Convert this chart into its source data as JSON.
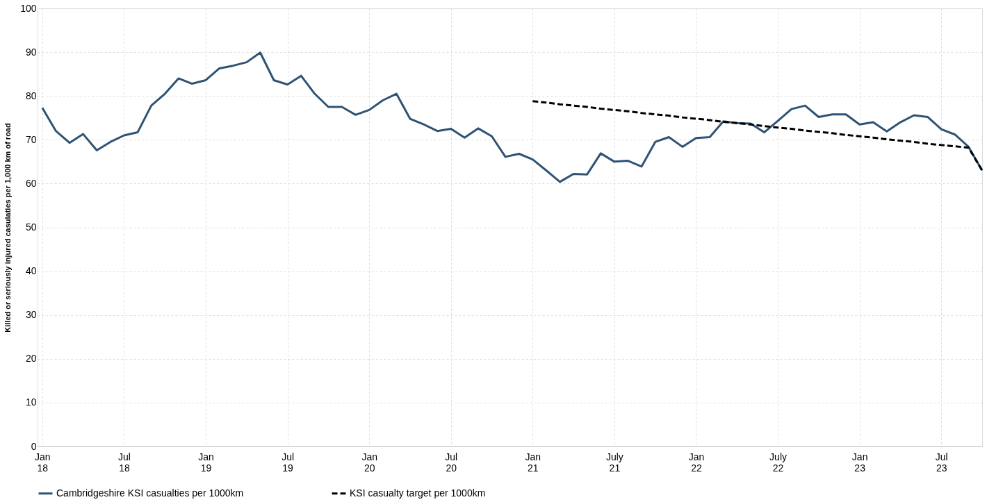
{
  "chart_data": {
    "type": "line",
    "ylabel": "Killed or seriously injured casulaties per 1,000 km of road",
    "categories": [
      "Jan 18",
      null,
      null,
      null,
      null,
      null,
      "Jul 18",
      null,
      null,
      null,
      null,
      null,
      "Jan 19",
      null,
      null,
      null,
      null,
      null,
      "Jul 19",
      null,
      null,
      null,
      null,
      null,
      "Jan 20",
      null,
      null,
      null,
      null,
      null,
      "Jul 20",
      null,
      null,
      null,
      null,
      null,
      "Jan 21",
      null,
      null,
      null,
      null,
      null,
      "July 21",
      null,
      null,
      null,
      null,
      null,
      "Jan 22",
      null,
      null,
      null,
      null,
      null,
      "July 22",
      null,
      null,
      null,
      null,
      null,
      "Jan 23",
      null,
      null,
      null,
      null,
      null,
      "Jul 23",
      null,
      null,
      null
    ],
    "series": [
      {
        "name": "Cambridgeshire KSI casualties per 1000km",
        "color": "#2f5374",
        "line_style": "solid",
        "values": [
          77.3,
          72,
          69.3,
          71.3,
          67.6,
          69.5,
          71,
          71.7,
          77.8,
          80.5,
          84,
          82.8,
          83.6,
          86.3,
          86.9,
          87.7,
          89.9,
          83.6,
          82.6,
          84.6,
          80.5,
          77.5,
          77.5,
          75.7,
          76.8,
          79,
          80.5,
          74.8,
          73.5,
          72,
          72.5,
          70.5,
          72.6,
          70.8,
          66.1,
          66.8,
          65.5,
          63,
          60.4,
          62.2,
          62.1,
          66.9,
          65,
          65.2,
          63.9,
          69.5,
          70.6,
          68.4,
          70.4,
          70.6,
          74.2,
          73.8,
          73.7,
          71.7,
          74.3,
          77,
          77.8,
          75.2,
          75.8,
          75.8,
          73.5,
          74,
          71.9,
          74,
          75.6,
          75.2,
          72.4,
          71.2,
          68.4,
          63
        ]
      },
      {
        "name": "KSI casualty target per 1000km",
        "color": "#000000",
        "line_style": "dashed",
        "values": [
          null,
          null,
          null,
          null,
          null,
          null,
          null,
          null,
          null,
          null,
          null,
          null,
          null,
          null,
          null,
          null,
          null,
          null,
          null,
          null,
          null,
          null,
          null,
          null,
          null,
          null,
          null,
          null,
          null,
          null,
          null,
          null,
          null,
          null,
          null,
          null,
          78.8,
          78.5,
          78.1,
          77.8,
          77.5,
          77.1,
          76.8,
          76.5,
          76.1,
          75.8,
          75.5,
          75.1,
          74.8,
          74.5,
          74.1,
          73.8,
          73.5,
          73.1,
          72.8,
          72.5,
          72.1,
          71.8,
          71.5,
          71.1,
          70.8,
          70.5,
          70.1,
          69.8,
          69.5,
          69.1,
          68.8,
          68.5,
          68.2,
          63
        ]
      }
    ],
    "ylim": [
      0,
      100
    ],
    "yticks": [
      0,
      10,
      20,
      30,
      40,
      50,
      60,
      70,
      80,
      90,
      100
    ],
    "grid": true,
    "legend": "bottom",
    "marker": "none"
  }
}
